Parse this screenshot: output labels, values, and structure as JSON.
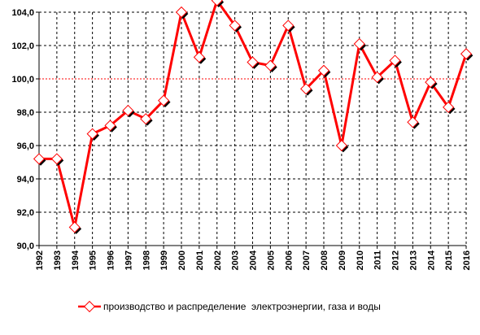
{
  "chart_data": {
    "type": "line",
    "title": "",
    "xlabel": "",
    "ylabel": "",
    "x": [
      "1992",
      "1993",
      "1994",
      "1995",
      "1996",
      "1997",
      "1998",
      "1999",
      "2000",
      "2001",
      "2002",
      "2003",
      "2004",
      "2005",
      "2006",
      "2007",
      "2008",
      "2009",
      "2010",
      "2011",
      "2012",
      "2013",
      "2014",
      "2015",
      "2016"
    ],
    "series": [
      {
        "name": "производство и распределение  электроэнергии, газа и воды",
        "values": [
          95.2,
          95.2,
          91.1,
          96.7,
          97.2,
          98.1,
          97.6,
          98.7,
          104.0,
          101.3,
          104.7,
          103.2,
          101.0,
          100.8,
          103.2,
          99.4,
          100.5,
          96.0,
          102.1,
          100.1,
          101.1,
          97.4,
          99.8,
          98.3,
          101.5
        ],
        "color": "#ff0000"
      }
    ],
    "ylim": [
      90,
      104
    ],
    "yticks": [
      "90,0",
      "92,0",
      "94,0",
      "96,0",
      "98,0",
      "100,0",
      "102,0",
      "104,0"
    ],
    "reference_line": {
      "value": 100,
      "color": "#ff0000"
    },
    "grid": true,
    "legend_position": "bottom-center"
  }
}
